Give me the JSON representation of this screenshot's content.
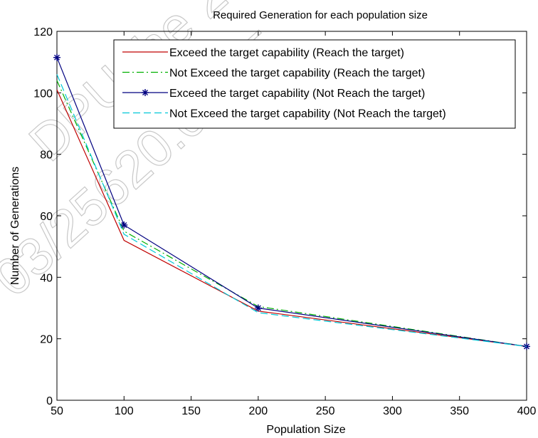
{
  "chart_data": {
    "type": "line",
    "title": "Required Generation for each population size",
    "xlabel": "Population Size",
    "ylabel": "Number of Generations",
    "xlim": [
      50,
      400
    ],
    "ylim": [
      0,
      120
    ],
    "xticks": [
      50,
      100,
      150,
      200,
      250,
      300,
      350,
      400
    ],
    "yticks": [
      0,
      20,
      40,
      60,
      80,
      100,
      120
    ],
    "x": [
      50,
      100,
      200,
      400
    ],
    "legend_position": "top-right",
    "grid": false,
    "series": [
      {
        "name": "Exceed the target capability (Reach the target)",
        "values": [
          101,
          52,
          29,
          17.5
        ],
        "color": "#c00000",
        "line_style": "solid",
        "marker": "none"
      },
      {
        "name": "Not Exceed the target capability (Reach the target)",
        "values": [
          104,
          55,
          30.5,
          17.5
        ],
        "color": "#00b000",
        "line_style": "dash-dot",
        "marker": "none"
      },
      {
        "name": "Exceed the target capability (Not Reach the target)",
        "values": [
          111.5,
          57,
          30,
          17.5
        ],
        "color": "#000080",
        "line_style": "solid",
        "marker": "asterisk"
      },
      {
        "name": "Not Exceed the target capability (Not Reach the target)",
        "values": [
          106,
          54,
          28.5,
          17.5
        ],
        "color": "#00c8d8",
        "line_style": "dashed",
        "marker": "none"
      }
    ]
  },
  "watermark": {
    "lines": [
      "DPU.the 2",
      "03/25620.09.05."
    ],
    "color": "#c8c8c8"
  }
}
